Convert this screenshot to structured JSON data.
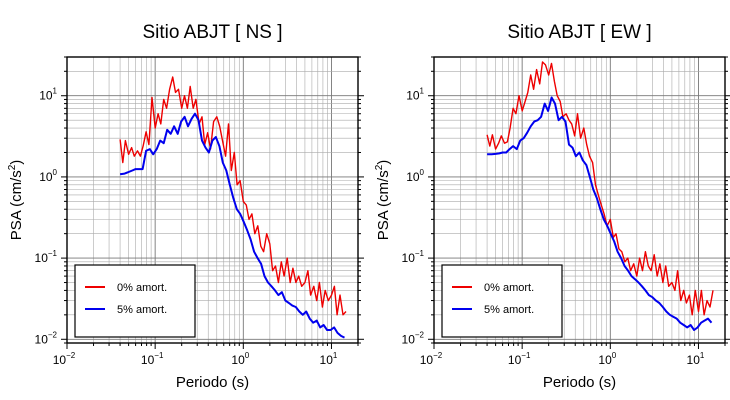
{
  "chart_data": [
    {
      "type": "line",
      "title": "Sitio ABJT [ NS ]",
      "xlabel": "Periodo (s)",
      "ylabel_main": "PSA (cm/s",
      "ylabel_sup": "2",
      "ylabel_tail": ")",
      "xscale": "log",
      "yscale": "log",
      "xlim": [
        0.01,
        20
      ],
      "ylim": [
        0.009,
        30
      ],
      "grid": true,
      "legend_position": "bottom-left",
      "x_ticks": [
        {
          "base": "10",
          "exp": "−2",
          "value": 0.01
        },
        {
          "base": "10",
          "exp": "−1",
          "value": 0.1
        },
        {
          "base": "10",
          "exp": "0",
          "value": 1
        },
        {
          "base": "10",
          "exp": "1",
          "value": 10
        }
      ],
      "y_ticks": [
        {
          "base": "10",
          "exp": "−2",
          "value": 0.01
        },
        {
          "base": "10",
          "exp": "−1",
          "value": 0.1
        },
        {
          "base": "10",
          "exp": "0",
          "value": 1
        },
        {
          "base": "10",
          "exp": "1",
          "value": 10
        }
      ],
      "series": [
        {
          "name": "0% amort.",
          "color": "#ee0000",
          "x": [
            0.04,
            0.043,
            0.046,
            0.05,
            0.054,
            0.058,
            0.063,
            0.068,
            0.073,
            0.079,
            0.085,
            0.092,
            0.1,
            0.108,
            0.116,
            0.125,
            0.135,
            0.146,
            0.158,
            0.17,
            0.184,
            0.2,
            0.215,
            0.232,
            0.25,
            0.27,
            0.29,
            0.315,
            0.34,
            0.365,
            0.395,
            0.425,
            0.46,
            0.5,
            0.54,
            0.58,
            0.63,
            0.68,
            0.73,
            0.79,
            0.85,
            0.92,
            1.0,
            1.08,
            1.16,
            1.25,
            1.35,
            1.46,
            1.58,
            1.7,
            1.84,
            2.0,
            2.15,
            2.32,
            2.5,
            2.7,
            2.9,
            3.15,
            3.4,
            3.65,
            3.95,
            4.25,
            4.6,
            5.0,
            5.4,
            5.8,
            6.3,
            6.8,
            7.3,
            7.9,
            8.5,
            9.2,
            10.0,
            10.8,
            11.6,
            12.5,
            13.5,
            14.6
          ],
          "y": [
            2.9,
            1.5,
            2.8,
            1.9,
            2.3,
            1.8,
            2.1,
            1.8,
            2.4,
            3.6,
            2.5,
            9.5,
            4.0,
            6.0,
            4.5,
            9.0,
            7.0,
            12.0,
            17.0,
            11.0,
            12.0,
            7.0,
            10.0,
            7.0,
            13.0,
            7.0,
            9.0,
            4.5,
            5.5,
            2.5,
            3.5,
            2.2,
            4.8,
            5.5,
            4.2,
            2.8,
            1.8,
            4.5,
            1.2,
            2.0,
            0.8,
            0.9,
            0.5,
            0.45,
            0.3,
            0.35,
            0.2,
            0.25,
            0.14,
            0.12,
            0.2,
            0.15,
            0.07,
            0.08,
            0.05,
            0.09,
            0.06,
            0.1,
            0.05,
            0.075,
            0.05,
            0.06,
            0.045,
            0.05,
            0.07,
            0.035,
            0.045,
            0.03,
            0.05,
            0.025,
            0.04,
            0.03,
            0.035,
            0.045,
            0.02,
            0.035,
            0.02,
            0.022
          ]
        },
        {
          "name": "5% amort.",
          "color": "#0000ee",
          "x": [
            0.04,
            0.045,
            0.05,
            0.055,
            0.06,
            0.066,
            0.072,
            0.079,
            0.087,
            0.095,
            0.104,
            0.114,
            0.125,
            0.137,
            0.15,
            0.164,
            0.18,
            0.197,
            0.216,
            0.236,
            0.259,
            0.283,
            0.31,
            0.34,
            0.372,
            0.407,
            0.446,
            0.488,
            0.535,
            0.586,
            0.642,
            0.703,
            0.77,
            0.843,
            0.923,
            1.01,
            1.106,
            1.211,
            1.326,
            1.452,
            1.59,
            1.741,
            1.907,
            2.088,
            2.286,
            2.503,
            2.741,
            3.001,
            3.287,
            3.599,
            3.941,
            4.316,
            4.726,
            5.175,
            5.667,
            6.206,
            6.796,
            7.442,
            8.149,
            8.924,
            9.772,
            10.7,
            11.72,
            12.83,
            14.05
          ],
          "y": [
            1.08,
            1.1,
            1.15,
            1.2,
            1.25,
            1.25,
            1.25,
            2.1,
            2.2,
            1.9,
            2.2,
            2.8,
            2.6,
            3.8,
            3.4,
            4.2,
            3.4,
            4.8,
            5.5,
            4.2,
            5.2,
            6.0,
            5.0,
            2.8,
            2.3,
            2.0,
            2.8,
            3.1,
            2.4,
            1.5,
            1.2,
            0.8,
            0.55,
            0.4,
            0.35,
            0.28,
            0.22,
            0.17,
            0.12,
            0.1,
            0.085,
            0.06,
            0.05,
            0.045,
            0.04,
            0.035,
            0.038,
            0.03,
            0.028,
            0.026,
            0.025,
            0.022,
            0.02,
            0.022,
            0.018,
            0.016,
            0.017,
            0.014,
            0.015,
            0.013,
            0.013,
            0.014,
            0.012,
            0.011,
            0.0105
          ]
        }
      ]
    },
    {
      "type": "line",
      "title": "Sitio ABJT [ EW ]",
      "xlabel": "Periodo (s)",
      "ylabel_main": "PSA (cm/s",
      "ylabel_sup": "2",
      "ylabel_tail": ")",
      "xscale": "log",
      "yscale": "log",
      "xlim": [
        0.01,
        20
      ],
      "ylim": [
        0.009,
        30
      ],
      "grid": true,
      "legend_position": "bottom-left",
      "x_ticks": [
        {
          "base": "10",
          "exp": "−2",
          "value": 0.01
        },
        {
          "base": "10",
          "exp": "−1",
          "value": 0.1
        },
        {
          "base": "10",
          "exp": "0",
          "value": 1
        },
        {
          "base": "10",
          "exp": "1",
          "value": 10
        }
      ],
      "y_ticks": [
        {
          "base": "10",
          "exp": "−2",
          "value": 0.01
        },
        {
          "base": "10",
          "exp": "−1",
          "value": 0.1
        },
        {
          "base": "10",
          "exp": "0",
          "value": 1
        },
        {
          "base": "10",
          "exp": "1",
          "value": 10
        }
      ],
      "series": [
        {
          "name": "0% amort.",
          "color": "#ee0000",
          "x": [
            0.04,
            0.043,
            0.046,
            0.05,
            0.054,
            0.058,
            0.063,
            0.068,
            0.073,
            0.079,
            0.085,
            0.092,
            0.1,
            0.108,
            0.116,
            0.125,
            0.135,
            0.146,
            0.158,
            0.17,
            0.184,
            0.2,
            0.215,
            0.232,
            0.25,
            0.27,
            0.29,
            0.315,
            0.34,
            0.365,
            0.395,
            0.425,
            0.46,
            0.5,
            0.54,
            0.58,
            0.63,
            0.68,
            0.73,
            0.79,
            0.85,
            0.92,
            1.0,
            1.08,
            1.16,
            1.25,
            1.35,
            1.46,
            1.58,
            1.7,
            1.84,
            2.0,
            2.15,
            2.32,
            2.5,
            2.7,
            2.9,
            3.15,
            3.4,
            3.65,
            3.95,
            4.25,
            4.6,
            5.0,
            5.4,
            5.8,
            6.3,
            6.8,
            7.3,
            7.9,
            8.5,
            9.2,
            10.0,
            10.8,
            11.6,
            12.5,
            13.5,
            14.6
          ],
          "y": [
            3.3,
            2.4,
            3.3,
            2.2,
            2.6,
            3.2,
            2.6,
            2.7,
            4.0,
            7.0,
            6.0,
            10.0,
            6.5,
            8.5,
            11.0,
            18.0,
            12.0,
            21.0,
            14.0,
            26.0,
            24.0,
            18.0,
            25.0,
            15.0,
            10.0,
            8.5,
            5.5,
            6.0,
            5.0,
            4.5,
            3.2,
            6.0,
            3.0,
            4.0,
            2.5,
            1.8,
            1.5,
            0.8,
            0.6,
            0.45,
            0.35,
            0.25,
            0.3,
            0.18,
            0.2,
            0.13,
            0.12,
            0.09,
            0.1,
            0.07,
            0.085,
            0.06,
            0.1,
            0.07,
            0.12,
            0.08,
            0.07,
            0.11,
            0.06,
            0.085,
            0.05,
            0.08,
            0.045,
            0.05,
            0.04,
            0.07,
            0.03,
            0.04,
            0.028,
            0.035,
            0.02,
            0.04,
            0.022,
            0.04,
            0.02,
            0.03,
            0.025,
            0.04
          ]
        },
        {
          "name": "5% amort.",
          "color": "#0000ee",
          "x": [
            0.04,
            0.045,
            0.05,
            0.055,
            0.06,
            0.066,
            0.072,
            0.079,
            0.087,
            0.095,
            0.104,
            0.114,
            0.125,
            0.137,
            0.15,
            0.164,
            0.18,
            0.197,
            0.216,
            0.236,
            0.259,
            0.283,
            0.31,
            0.34,
            0.372,
            0.407,
            0.446,
            0.488,
            0.535,
            0.586,
            0.642,
            0.703,
            0.77,
            0.843,
            0.923,
            1.01,
            1.106,
            1.211,
            1.326,
            1.452,
            1.59,
            1.741,
            1.907,
            2.088,
            2.286,
            2.503,
            2.741,
            3.001,
            3.287,
            3.599,
            3.941,
            4.316,
            4.726,
            5.175,
            5.667,
            6.206,
            6.796,
            7.442,
            8.149,
            8.924,
            9.772,
            10.7,
            11.72,
            12.83,
            14.05
          ],
          "y": [
            1.9,
            1.9,
            1.92,
            1.95,
            2.0,
            2.0,
            2.2,
            2.4,
            2.2,
            2.8,
            3.0,
            3.5,
            4.2,
            4.8,
            5.0,
            5.5,
            8.0,
            6.5,
            9.5,
            8.0,
            5.0,
            5.5,
            4.8,
            2.5,
            2.3,
            1.8,
            2.0,
            1.6,
            1.4,
            1.0,
            0.7,
            0.55,
            0.4,
            0.3,
            0.25,
            0.2,
            0.16,
            0.12,
            0.1,
            0.08,
            0.07,
            0.06,
            0.055,
            0.05,
            0.045,
            0.04,
            0.035,
            0.033,
            0.03,
            0.028,
            0.025,
            0.022,
            0.02,
            0.019,
            0.018,
            0.016,
            0.015,
            0.014,
            0.015,
            0.013,
            0.014,
            0.016,
            0.017,
            0.018,
            0.016
          ]
        }
      ]
    }
  ]
}
